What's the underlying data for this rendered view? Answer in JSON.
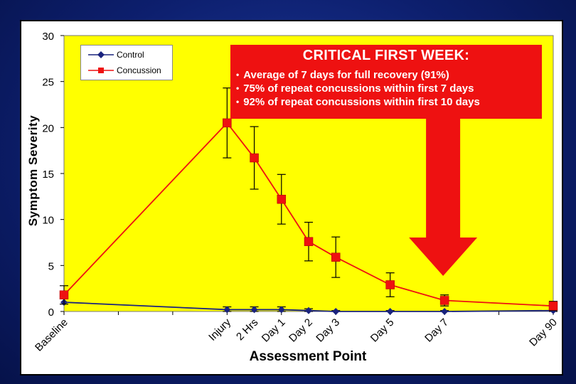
{
  "chart_data": {
    "type": "line",
    "title": "",
    "xlabel": "Assessment Point",
    "ylabel": "Symptom Severity",
    "ylim": [
      0,
      30
    ],
    "yticks": [
      0,
      5,
      10,
      15,
      20,
      25,
      30
    ],
    "grid": false,
    "legend_position": "top-left",
    "categories": [
      "Baseline",
      "Injury",
      "2 Hrs",
      "Day 1",
      "Day 2",
      "Day 3",
      "Day 5",
      "Day 7",
      "Day 90"
    ],
    "x_positions": [
      0,
      3,
      3.5,
      4,
      4.5,
      5,
      6,
      7,
      9
    ],
    "series": [
      {
        "name": "Control",
        "color": "#1a237e",
        "marker": "diamond",
        "values": [
          1.0,
          0.2,
          0.2,
          0.2,
          0.1,
          0.0,
          0.0,
          0.0,
          0.1
        ],
        "error": [
          0,
          0.3,
          0.3,
          0.3,
          0.2,
          0.1,
          0.1,
          0.1,
          0.2
        ]
      },
      {
        "name": "Concussion",
        "color": "#ee1111",
        "marker": "square",
        "values": [
          1.8,
          20.5,
          16.7,
          12.2,
          7.6,
          5.9,
          2.9,
          1.2,
          0.6
        ],
        "error": [
          1.0,
          3.8,
          3.4,
          2.7,
          2.1,
          2.2,
          1.3,
          0.6,
          0.5
        ]
      }
    ]
  },
  "callout": {
    "title": "CRITICAL FIRST WEEK:",
    "bullets": [
      "Average of 7 days for full recovery (91%)",
      "75% of repeat concussions within first 7 days",
      "92% of repeat concussions within first 10 days"
    ],
    "arrow_color": "#ee1111"
  },
  "colors": {
    "plot_background": "#ffff00",
    "background": "#0d1f6e"
  }
}
